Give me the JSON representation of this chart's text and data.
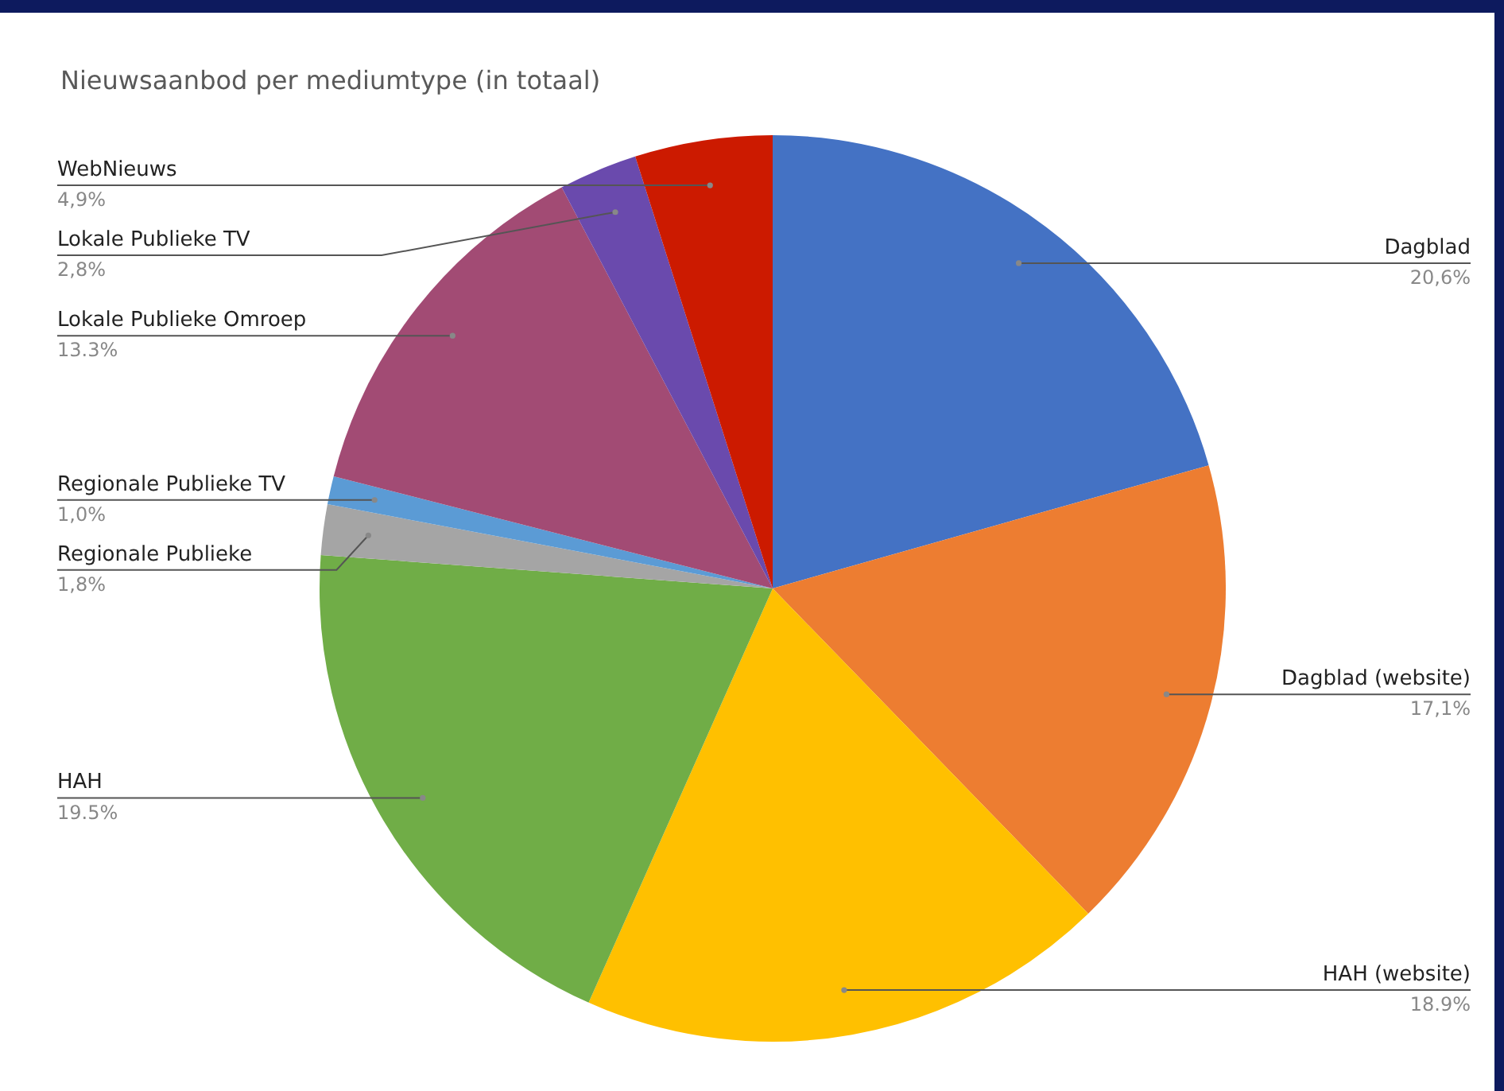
{
  "chart_data": {
    "type": "pie",
    "title": "Nieuwsaanbod per mediumtype (in totaal)",
    "categories": [
      "Dagblad",
      "Dagblad (website)",
      "HAH (website)",
      "HAH",
      "Regionale Publieke",
      "Regionale Publieke TV",
      "Lokale Publieke Omroep",
      "Lokale Publieke TV",
      "WebNieuws"
    ],
    "values": [
      20.6,
      17.1,
      18.9,
      19.5,
      1.8,
      1.0,
      13.3,
      2.8,
      4.9
    ],
    "value_labels": [
      "20,6%",
      "17,1%",
      "18.9%",
      "19.5%",
      "1,8%",
      "1,0%",
      "13.3%",
      "2,8%",
      "4,9%"
    ],
    "colors": [
      "#4472c4",
      "#ed7d31",
      "#ffc000",
      "#70ad47",
      "#a5a5a5",
      "#5b9bd5",
      "#a24b74",
      "#6a4aad",
      "#cc1a00"
    ],
    "legend": false
  }
}
